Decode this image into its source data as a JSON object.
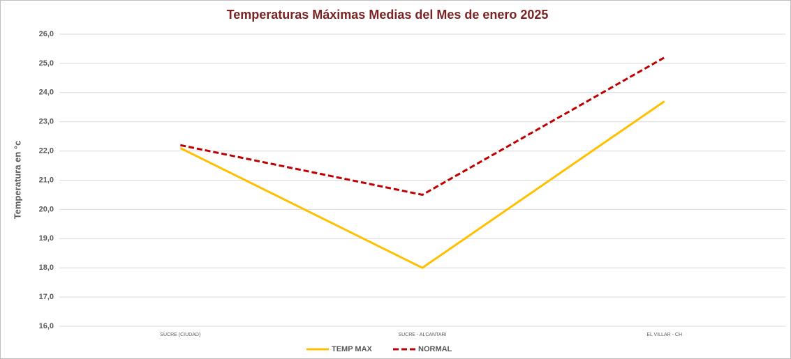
{
  "chart_data": {
    "type": "line",
    "title": "Temperaturas  Máximas Medias del Mes de enero 2025",
    "y_label": "Temperatura en °c",
    "categories": [
      "SUCRE (CIUDAD)",
      "SUCRE - ALCANTARI",
      "EL VILLAR - CH"
    ],
    "series": [
      {
        "name": "TEMP MAX",
        "color": "#FFC000",
        "dashed": false,
        "values": [
          22.1,
          18.0,
          23.7
        ]
      },
      {
        "name": "NORMAL",
        "color": "#C00000",
        "dashed": true,
        "values": [
          22.2,
          20.5,
          25.2
        ]
      }
    ],
    "ylim": [
      16,
      26
    ],
    "yticks": [
      {
        "value": 16,
        "label": "16,0"
      },
      {
        "value": 17,
        "label": "17,0"
      },
      {
        "value": 18,
        "label": "18,0"
      },
      {
        "value": 19,
        "label": "19,0"
      },
      {
        "value": 20,
        "label": "20,0"
      },
      {
        "value": 21,
        "label": "21,0"
      },
      {
        "value": 22,
        "label": "22,0"
      },
      {
        "value": 23,
        "label": "23,0"
      },
      {
        "value": 24,
        "label": "24,0"
      },
      {
        "value": 25,
        "label": "25,0"
      },
      {
        "value": 26,
        "label": "26,0"
      }
    ],
    "grid": true,
    "legend": "bottom"
  }
}
